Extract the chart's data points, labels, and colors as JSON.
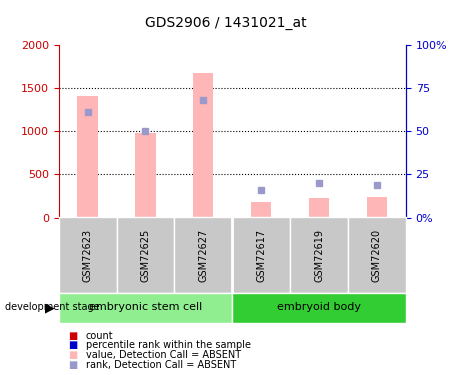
{
  "title": "GDS2906 / 1431021_at",
  "samples": [
    "GSM72623",
    "GSM72625",
    "GSM72627",
    "GSM72617",
    "GSM72619",
    "GSM72620"
  ],
  "groups": [
    {
      "label": "embryonic stem cell",
      "indices": [
        0,
        1,
        2
      ],
      "color": "#90EE90"
    },
    {
      "label": "embryoid body",
      "indices": [
        3,
        4,
        5
      ],
      "color": "#32CD32"
    }
  ],
  "bar_values": [
    1410,
    980,
    1680,
    185,
    230,
    240
  ],
  "rank_markers": [
    1220,
    1000,
    1360,
    320,
    400,
    380
  ],
  "bar_color": "#FFB6B6",
  "rank_color": "#9999CC",
  "ylim_left": [
    0,
    2000
  ],
  "ylim_right": [
    0,
    100
  ],
  "yticks_left": [
    0,
    500,
    1000,
    1500,
    2000
  ],
  "ytick_labels_left": [
    "0",
    "500",
    "1000",
    "1500",
    "2000"
  ],
  "yticks_right": [
    0,
    25,
    50,
    75,
    100
  ],
  "ytick_labels_right": [
    "0%",
    "25",
    "50",
    "75",
    "100%"
  ],
  "left_axis_color": "#CC0000",
  "right_axis_color": "#0000CC",
  "development_stage_label": "development stage",
  "legend_items": [
    {
      "color": "#CC0000",
      "label": "count"
    },
    {
      "color": "#0000CC",
      "label": "percentile rank within the sample"
    },
    {
      "color": "#FFB6B6",
      "label": "value, Detection Call = ABSENT"
    },
    {
      "color": "#9999CC",
      "label": "rank, Detection Call = ABSENT"
    }
  ]
}
